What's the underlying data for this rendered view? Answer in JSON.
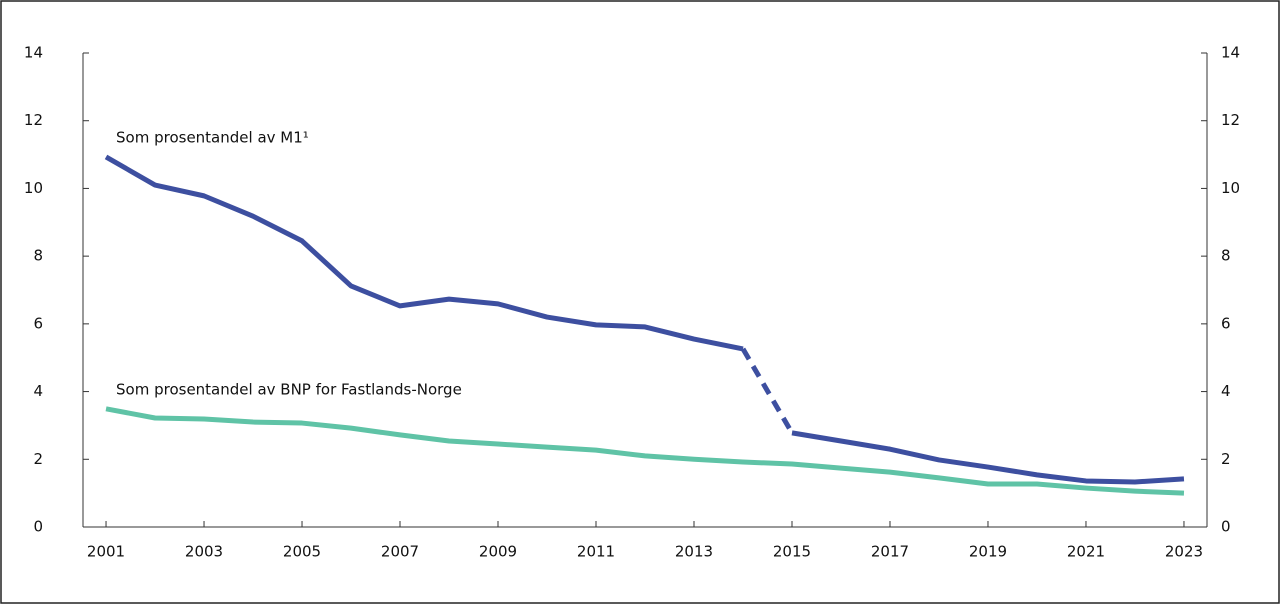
{
  "chart_data": {
    "type": "line",
    "x": [
      2001,
      2002,
      2003,
      2004,
      2005,
      2006,
      2007,
      2008,
      2009,
      2010,
      2011,
      2012,
      2013,
      2014,
      2015,
      2016,
      2017,
      2018,
      2019,
      2020,
      2021,
      2022,
      2023
    ],
    "series": [
      {
        "name": "Som prosentandel av M1¹",
        "color": "#3d4fa0",
        "dash_x": [
          2014,
          2015
        ],
        "values": [
          10.93,
          10.1,
          9.78,
          9.18,
          8.45,
          7.12,
          6.53,
          6.73,
          6.59,
          6.2,
          5.97,
          5.91,
          5.55,
          5.26,
          2.78,
          2.54,
          2.3,
          1.98,
          1.77,
          1.54,
          1.36,
          1.33,
          1.42
        ]
      },
      {
        "name": "Som prosentandel av BNP for Fastlands-Norge",
        "color": "#5fc3a6",
        "values": [
          3.49,
          3.22,
          3.19,
          3.1,
          3.07,
          2.92,
          2.72,
          2.54,
          2.45,
          2.36,
          2.27,
          2.1,
          2.0,
          1.92,
          1.86,
          1.74,
          1.62,
          1.45,
          1.27,
          1.27,
          1.15,
          1.06,
          1.0
        ]
      }
    ],
    "xlim": [
      2000.53,
      2023.47
    ],
    "xticks": [
      2001,
      2003,
      2005,
      2007,
      2009,
      2011,
      2013,
      2015,
      2017,
      2019,
      2021,
      2023
    ],
    "ylim": [
      0,
      14
    ],
    "yticks": [
      0,
      2,
      4,
      6,
      8,
      10,
      12,
      14
    ],
    "y2lim": [
      0,
      14
    ],
    "y2ticks": [
      0,
      2,
      4,
      6,
      8,
      10,
      12,
      14
    ],
    "grid": false
  }
}
